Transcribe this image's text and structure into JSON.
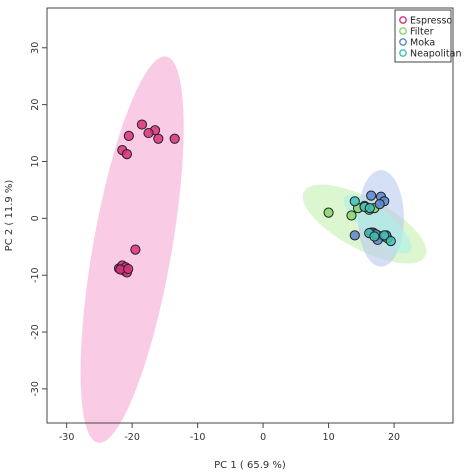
{
  "chart_data": {
    "type": "scatter",
    "xlabel": "PC 1 ( 65.9 %)",
    "ylabel": "PC 2 ( 11.9 %)",
    "xlim": [
      -33,
      29
    ],
    "ylim": [
      -36,
      37
    ],
    "x_ticks": [
      -30,
      -20,
      -10,
      0,
      10,
      20
    ],
    "y_ticks": [
      -30,
      -20,
      -10,
      0,
      10,
      20,
      30
    ],
    "x_tick_labels": [
      "-30",
      "-20",
      "-10",
      "0",
      "10",
      "20"
    ],
    "y_tick_labels": [
      "-30",
      "-20",
      "-10",
      "0",
      "10",
      "20",
      "30"
    ],
    "grid": false,
    "legend_position": "top-right",
    "series": [
      {
        "name": "Espresso",
        "color": "#d9307f",
        "ellipse": {
          "cx": -20,
          "cy": -5.5,
          "rx": 6,
          "ry": 34.5,
          "angle_deg": 10,
          "color": "#f7a8d2"
        },
        "points": [
          [
            -16.5,
            15.5
          ],
          [
            -18.5,
            16.5
          ],
          [
            -20.5,
            14.5
          ],
          [
            -17.5,
            15.0
          ],
          [
            -16.0,
            14.0
          ],
          [
            -13.5,
            14.0
          ],
          [
            -21.5,
            12.0
          ],
          [
            -20.8,
            11.3
          ],
          [
            -19.5,
            -5.5
          ],
          [
            -22.0,
            -8.8
          ],
          [
            -21.5,
            -8.3
          ],
          [
            -21.0,
            -8.6
          ],
          [
            -21.2,
            -9.2
          ],
          [
            -20.8,
            -9.5
          ],
          [
            -21.8,
            -9.0
          ],
          [
            -20.6,
            -8.9
          ]
        ]
      },
      {
        "name": "Filter",
        "color": "#8ad36b",
        "ellipse": {
          "cx": 15.5,
          "cy": -1.0,
          "rx": 10.5,
          "ry": 4.5,
          "angle_deg": 28,
          "color": "#c4f2b0"
        },
        "points": [
          [
            10.0,
            1.0
          ],
          [
            13.5,
            0.5
          ],
          [
            14.5,
            1.8
          ],
          [
            15.5,
            2.2
          ],
          [
            16.2,
            1.5
          ],
          [
            17.0,
            1.8
          ],
          [
            16.8,
            -2.5
          ],
          [
            17.5,
            -3.0
          ],
          [
            18.5,
            -3.2
          ],
          [
            19.0,
            -3.5
          ]
        ]
      },
      {
        "name": "Moka",
        "color": "#5b86c9",
        "ellipse": {
          "cx": 18.0,
          "cy": 0.0,
          "rx": 3.5,
          "ry": 8.5,
          "angle_deg": 0,
          "color": "#b9caef"
        },
        "points": [
          [
            16.5,
            4.0
          ],
          [
            18.0,
            3.8
          ],
          [
            18.5,
            3.0
          ],
          [
            17.8,
            2.5
          ],
          [
            14.0,
            -3.0
          ],
          [
            16.5,
            -2.5
          ],
          [
            17.5,
            -3.8
          ],
          [
            18.8,
            -3.0
          ],
          [
            17.2,
            -2.8
          ]
        ]
      },
      {
        "name": "Neapolitan",
        "color": "#41bfb6",
        "ellipse": {
          "cx": 17.5,
          "cy": -1.0,
          "rx": 6.5,
          "ry": 2.5,
          "angle_deg": 40,
          "color": "#aef0ea"
        },
        "points": [
          [
            14.0,
            3.0
          ],
          [
            15.5,
            2.0
          ],
          [
            16.3,
            1.8
          ],
          [
            16.2,
            -2.6
          ],
          [
            17.0,
            -3.2
          ],
          [
            18.5,
            -3.0
          ],
          [
            19.5,
            -4.0
          ]
        ]
      }
    ]
  }
}
